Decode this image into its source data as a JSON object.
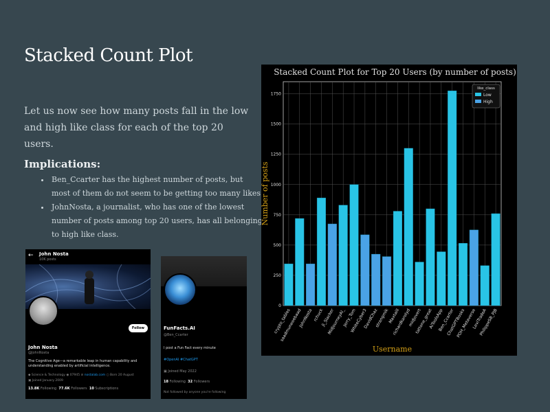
{
  "slide": {
    "title": "Stacked Count Plot",
    "intro": "Let us now see how many posts fall in the low and high like class for each of the top 20 users.",
    "implications_heading": "Implications:",
    "bullets": [
      "Ben_Ccarter has the highest number of posts, but most of them do not seem to be getting too many likes.",
      "JohnNosta, a journalist, who has one of the lowest number of posts among top 20 users, has all belonging to high like class."
    ]
  },
  "profile_card_1": {
    "back_arrow": "←",
    "top_name": "John Nosta",
    "top_posts": "10K posts",
    "follow_label": "Follow",
    "name": "John Nosta",
    "handle": "@JohnNosta",
    "bio": "The Cognitive Age—a remarkable leap in human capability and understanding enabled by artificial intelligence.",
    "category": "Science & Technology",
    "location": "07945",
    "website": "nostalab.com",
    "born": "Born 20 August",
    "joined": "Joined January 2009",
    "following_count": "13.8K",
    "following_label": "Following",
    "followers_count": "77.6K",
    "followers_label": "Followers",
    "subscriptions_count": "10",
    "subscriptions_label": "Subscriptions",
    "verified_color": "#1d9bf0"
  },
  "profile_card_2": {
    "name": "FunFacts.AI",
    "handle": "@Ben_Ccarter",
    "bio": "I post a Fun Fact every minute",
    "tags": "#OpenAI #ChatGPT",
    "joined": "Joined May 2022",
    "following_count": "18",
    "following_label": "Following",
    "followers_count": "32",
    "followers_label": "Followers",
    "not_followed": "Not followed by anyone you're following"
  },
  "chart_data": {
    "type": "bar",
    "stacked": true,
    "title": "Stacked Count Plot for Top 20 Users (by number of posts)",
    "xlabel": "Username",
    "ylabel": "Number of posts",
    "ylim": [
      0,
      1850
    ],
    "yticks": [
      0,
      250,
      500,
      750,
      1000,
      1250,
      1500,
      1750
    ],
    "legend_title": "like_class",
    "legend_position": "top-right",
    "categories": [
      "crypto_tables",
      "saadmuneeebaad",
      "JohnNosta",
      "rchuck",
      "Ji_Slacker",
      "MidjourneyAI_",
      "Jerry_Tom",
      "WhiteCyber3",
      "DavidChaz",
      "strangmik",
      "Maxtaill",
      "richardkarolyd",
      "midjovert",
      "tattone_great",
      "AiToolsApp",
      "Ben_Ccarter",
      "ChatGPTBooks",
      "POH_Metaverse",
      "LeviTradeA",
      "PhilippeSB_PJB"
    ],
    "series": [
      {
        "name": "Low",
        "color": "#29c4e6",
        "values": [
          345,
          720,
          0,
          890,
          0,
          830,
          1000,
          0,
          0,
          0,
          780,
          1300,
          360,
          800,
          445,
          1775,
          515,
          0,
          330,
          760
        ]
      },
      {
        "name": "High",
        "color": "#4aa3e6",
        "values": [
          0,
          0,
          345,
          0,
          675,
          0,
          0,
          585,
          425,
          405,
          0,
          0,
          0,
          0,
          0,
          0,
          0,
          625,
          0,
          0
        ]
      }
    ],
    "colors": {
      "title": "#e0e0e0",
      "ylabel": "#d4a017",
      "xlabel": "#d4a017",
      "tick": "#e0e0e0",
      "grid": "#555555"
    },
    "grid": true
  }
}
